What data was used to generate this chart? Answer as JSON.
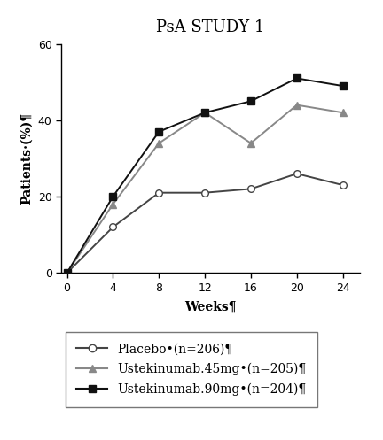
{
  "title": "PsA STUDY 1",
  "xlabel": "Weeks¶",
  "ylabel": "Patients·(%)¶",
  "weeks": [
    0,
    4,
    8,
    12,
    16,
    20,
    24
  ],
  "placebo": [
    0,
    12,
    21,
    21,
    22,
    26,
    23
  ],
  "uste45": [
    0,
    18,
    34,
    42,
    34,
    44,
    42
  ],
  "uste90": [
    0,
    20,
    37,
    42,
    45,
    51,
    49
  ],
  "ylim": [
    0,
    60
  ],
  "yticks": [
    0,
    20,
    40,
    60
  ],
  "xticks": [
    0,
    4,
    8,
    12,
    16,
    20,
    24
  ],
  "legend_labels": [
    "Placebo•(n=206)¶",
    "Ustekinumab․45mg•(n=205)¶",
    "Ustekinumab․90mg•(n=204)¶"
  ],
  "line_color_placebo": "#444444",
  "line_color_uste45": "#888888",
  "line_color_uste90": "#111111",
  "bg_color": "#ffffff",
  "title_fontsize": 13,
  "axis_fontsize": 10,
  "tick_fontsize": 9,
  "legend_fontsize": 10
}
